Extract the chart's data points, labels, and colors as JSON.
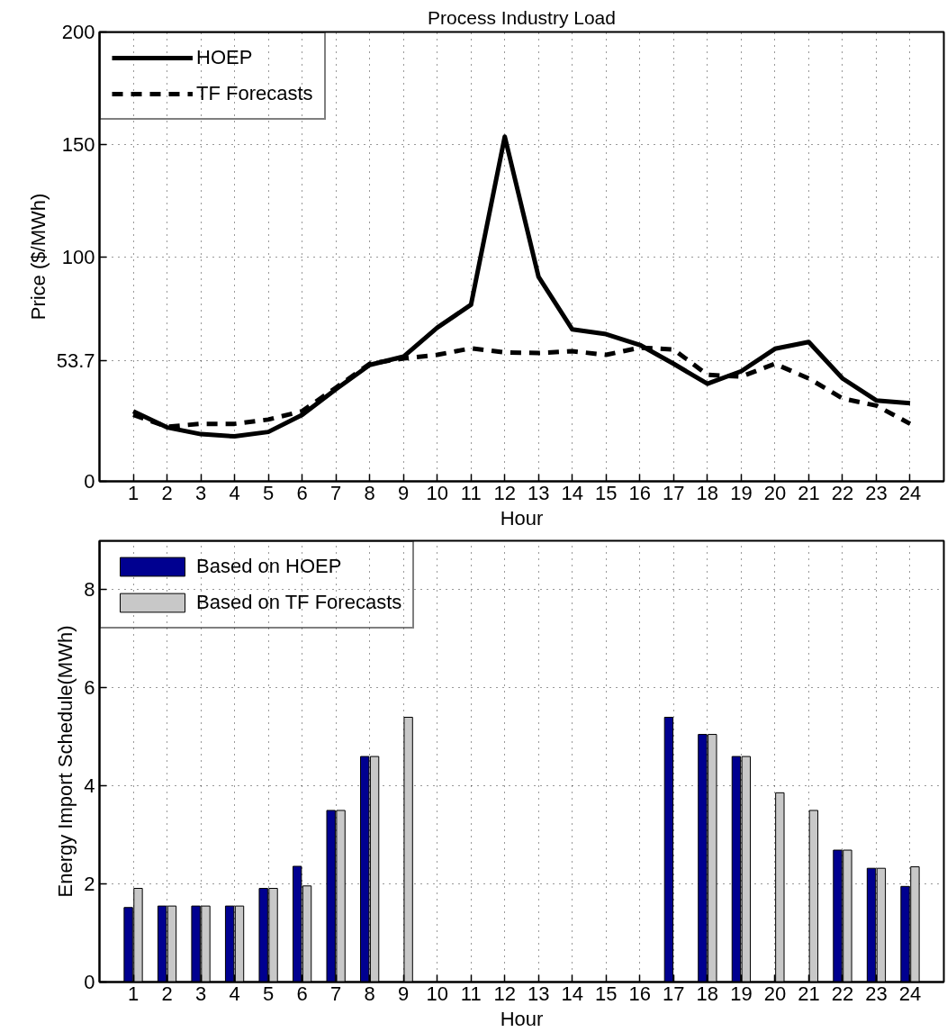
{
  "chart_data": [
    {
      "type": "line",
      "title": "Process Industry Load",
      "xlabel": "Hour",
      "ylabel": "Price ($/MWh)",
      "x": [
        1,
        2,
        3,
        4,
        5,
        6,
        7,
        8,
        9,
        10,
        11,
        12,
        13,
        14,
        15,
        16,
        17,
        18,
        19,
        20,
        21,
        22,
        23,
        24
      ],
      "series": [
        {
          "name": "HOEP",
          "color": "#000000",
          "line_style": "solid",
          "values": [
            31.2,
            24,
            21,
            20,
            22,
            29.6,
            41,
            51.8,
            55.5,
            68.4,
            78.6,
            153.4,
            91,
            67.6,
            65.5,
            60.7,
            52.3,
            43.4,
            49,
            59,
            62,
            45.8,
            36,
            34.8
          ]
        },
        {
          "name": "TF Forecasts",
          "color": "#000000",
          "line_style": "dashed",
          "values": [
            29.6,
            24.3,
            25.6,
            25.6,
            27.5,
            31.2,
            41.7,
            52.3,
            54.7,
            56.3,
            59.2,
            57.4,
            57.1,
            57.9,
            56.3,
            59.5,
            58.7,
            47.4,
            46.6,
            52.3,
            45.8,
            36.9,
            33.7,
            25.6
          ]
        }
      ],
      "xlim": [
        0,
        25
      ],
      "xticks": [
        1,
        2,
        3,
        4,
        5,
        6,
        7,
        8,
        9,
        10,
        11,
        12,
        13,
        14,
        15,
        16,
        17,
        18,
        19,
        20,
        21,
        22,
        23,
        24
      ],
      "ylim": [
        0,
        200
      ],
      "yticks": [
        0,
        53.7,
        100,
        150,
        200
      ],
      "grid": true,
      "legend": "top left"
    },
    {
      "type": "bar",
      "xlabel": "Hour",
      "ylabel": "Energy Import Schedule(MWh)",
      "x": [
        1,
        2,
        3,
        4,
        5,
        6,
        7,
        8,
        9,
        10,
        11,
        12,
        13,
        14,
        15,
        16,
        17,
        18,
        19,
        20,
        21,
        22,
        23,
        24
      ],
      "series": [
        {
          "name": "Based on HOEP",
          "color": "#000090",
          "values": [
            1.52,
            1.55,
            1.55,
            1.55,
            1.91,
            2.36,
            3.5,
            4.6,
            0,
            0,
            0,
            0,
            0,
            0,
            0,
            0,
            5.4,
            5.05,
            4.6,
            0,
            0,
            2.69,
            2.32,
            1.95
          ]
        },
        {
          "name": "Based on TF Forecasts",
          "color": "#c8c8c8",
          "values": [
            1.91,
            1.55,
            1.55,
            1.55,
            1.91,
            1.96,
            3.5,
            4.6,
            5.4,
            0,
            0,
            0,
            0,
            0,
            0,
            0,
            0,
            5.05,
            4.6,
            3.86,
            3.5,
            2.69,
            2.32,
            2.35
          ]
        }
      ],
      "xlim": [
        0,
        25
      ],
      "xticks": [
        1,
        2,
        3,
        4,
        5,
        6,
        7,
        8,
        9,
        10,
        11,
        12,
        13,
        14,
        15,
        16,
        17,
        18,
        19,
        20,
        21,
        22,
        23,
        24
      ],
      "ylim": [
        0,
        9
      ],
      "yticks": [
        0,
        2,
        4,
        6,
        8
      ],
      "grid": true,
      "legend": "top left"
    }
  ]
}
